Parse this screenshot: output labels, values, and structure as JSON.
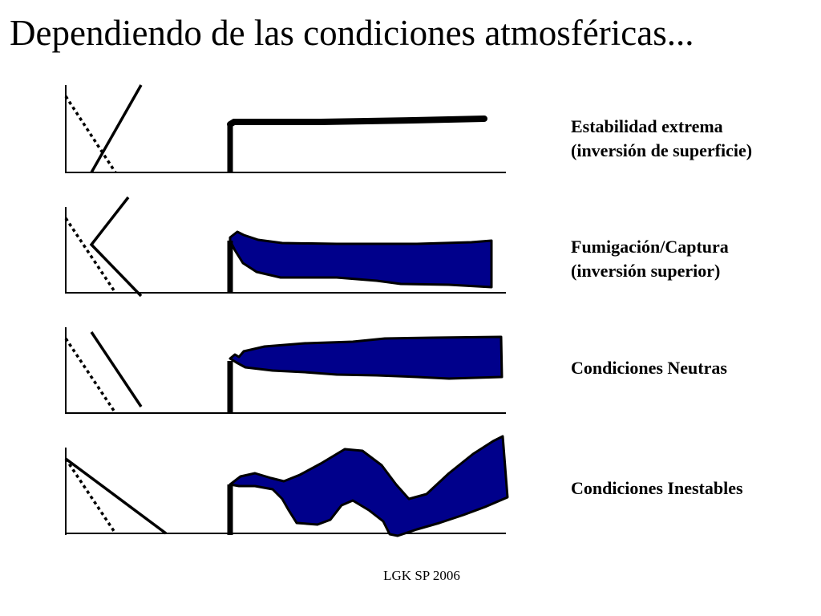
{
  "slide": {
    "title": "Dependiendo de las condiciones atmosféricas...",
    "footer": "LGK SP 2006"
  },
  "plume_color": "#00008b",
  "rows": [
    {
      "id": "stability-extreme",
      "lines": [
        "Estabilidad extrema",
        "(inversión de superficie)"
      ],
      "plume": "fanning"
    },
    {
      "id": "fumigation-capture",
      "lines": [
        "Fumigación/Captura",
        "(inversión superior)"
      ],
      "plume": "fumigation"
    },
    {
      "id": "neutral",
      "lines": [
        "Condiciones Neutras"
      ],
      "plume": "coning"
    },
    {
      "id": "unstable",
      "lines": [
        "Condiciones Inestables"
      ],
      "plume": "looping"
    }
  ]
}
